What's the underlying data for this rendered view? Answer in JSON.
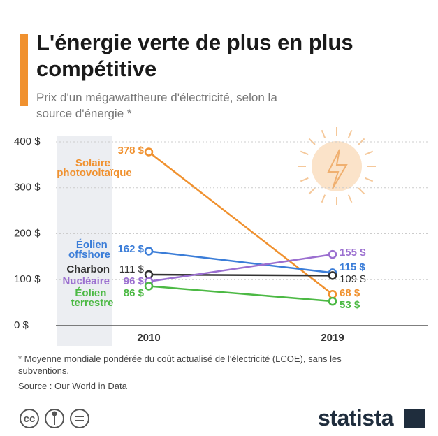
{
  "chart_data": {
    "type": "line",
    "title": "L'énergie verte de plus en plus compétitive",
    "subtitle": "Prix d'un mégawattheure d'électricité, selon la source d'énergie *",
    "categories": [
      "2010",
      "2019"
    ],
    "ylim": [
      0,
      400
    ],
    "yticks": [
      {
        "value": 0,
        "label": "0 $"
      },
      {
        "value": 100,
        "label": "100 $"
      },
      {
        "value": 200,
        "label": "200 $"
      },
      {
        "value": 300,
        "label": "300 $"
      },
      {
        "value": 400,
        "label": "400 $"
      }
    ],
    "grid": true,
    "series": [
      {
        "name": "Solaire photovoltaïque",
        "color": "#f0912f",
        "values": [
          378,
          68
        ],
        "value_labels": [
          "378 $",
          "68 $"
        ]
      },
      {
        "name": "Éolien offshore",
        "color": "#3b7dd8",
        "values": [
          162,
          115
        ],
        "value_labels": [
          "162 $",
          "115 $"
        ]
      },
      {
        "name": "Charbon",
        "color": "#333333",
        "values": [
          111,
          109
        ],
        "value_labels": [
          "111 $",
          "109 $"
        ]
      },
      {
        "name": "Nucléaire",
        "color": "#9b6fd0",
        "values": [
          96,
          155
        ],
        "value_labels": [
          "96 $",
          "155 $"
        ]
      },
      {
        "name": "Éolien terrestre",
        "color": "#4cb944",
        "values": [
          86,
          53
        ],
        "value_labels": [
          "86 $",
          "53 $"
        ]
      }
    ],
    "footnote": "* Moyenne mondiale pondérée du coût actualisé de l'électricité (LCOE), sans les subventions.",
    "source": "Source : Our World in Data",
    "brand": "statista"
  }
}
